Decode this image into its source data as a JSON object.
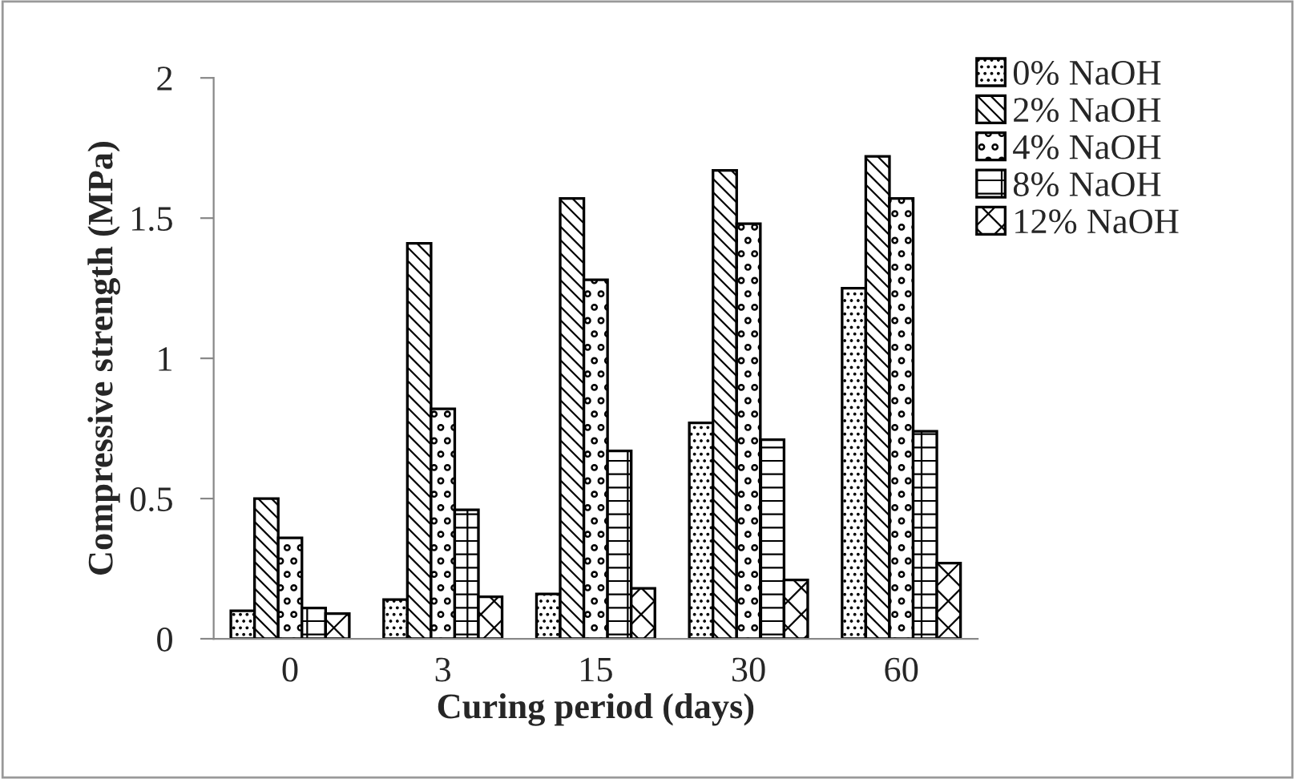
{
  "chart_data": {
    "type": "bar",
    "xlabel": "Curing period (days)",
    "ylabel": "Compressive strength (MPa)",
    "categories": [
      "0",
      "3",
      "15",
      "30",
      "60"
    ],
    "series": [
      {
        "name": "0% NaOH",
        "color": "#000000",
        "values": [
          0.1,
          0.14,
          0.16,
          0.77,
          1.25
        ]
      },
      {
        "name": "2% NaOH",
        "color": "#000000",
        "values": [
          0.5,
          1.41,
          1.57,
          1.67,
          1.72
        ]
      },
      {
        "name": "4% NaOH",
        "color": "#000000",
        "values": [
          0.36,
          0.82,
          1.28,
          1.48,
          1.57
        ]
      },
      {
        "name": "8% NaOH",
        "color": "#000000",
        "values": [
          0.11,
          0.46,
          0.67,
          0.71,
          0.74
        ]
      },
      {
        "name": "12% NaOH",
        "color": "#000000",
        "values": [
          0.09,
          0.15,
          0.18,
          0.21,
          0.27
        ]
      }
    ],
    "ylim": [
      0,
      2
    ],
    "yticks": [
      0,
      0.5,
      1,
      1.5,
      2
    ],
    "grid": false,
    "legend": "top right"
  }
}
